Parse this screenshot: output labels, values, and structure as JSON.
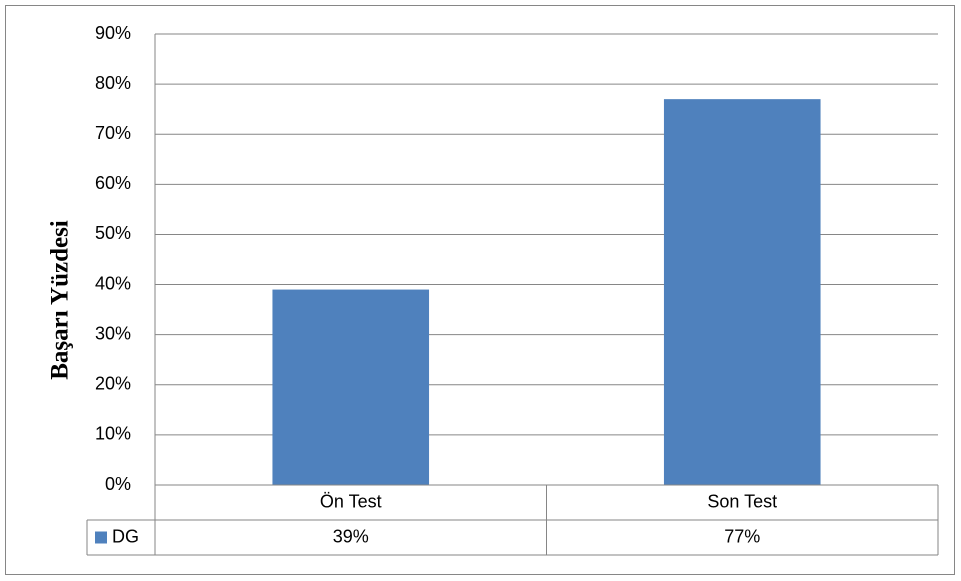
{
  "chart_data": {
    "type": "bar",
    "y_axis_label": "Başarı Yüzdesi",
    "categories": [
      "Ön Test",
      "Son Test"
    ],
    "series": [
      {
        "name": "DG",
        "color": "#4f81bd",
        "values": [
          39,
          77
        ],
        "value_labels": [
          "39%",
          "77%"
        ]
      }
    ],
    "ylim": [
      0,
      90
    ],
    "yticks": [
      {
        "value": 0,
        "label": "0%"
      },
      {
        "value": 10,
        "label": "10%"
      },
      {
        "value": 20,
        "label": "20%"
      },
      {
        "value": 30,
        "label": "30%"
      },
      {
        "value": 40,
        "label": "40%"
      },
      {
        "value": 50,
        "label": "50%"
      },
      {
        "value": 60,
        "label": "60%"
      },
      {
        "value": 70,
        "label": "70%"
      },
      {
        "value": 80,
        "label": "80%"
      },
      {
        "value": 90,
        "label": "90%"
      }
    ],
    "grid": true
  }
}
